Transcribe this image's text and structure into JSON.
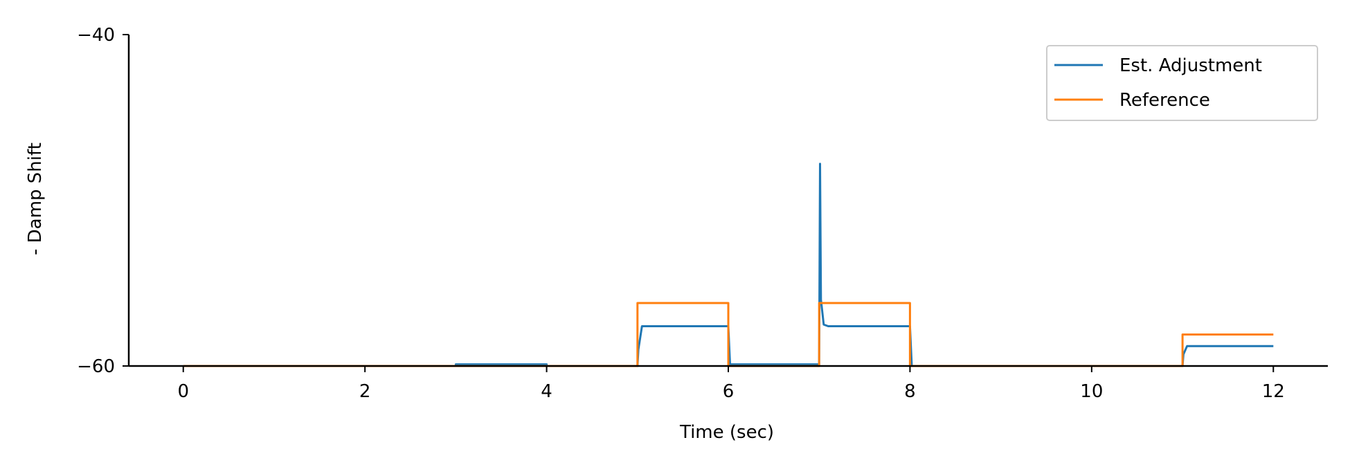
{
  "chart_data": {
    "type": "line",
    "title": "",
    "xlabel": "Time (sec)",
    "ylabel": "- Damp Shift",
    "xlim": [
      -0.6,
      12.6
    ],
    "ylim": [
      -60,
      -40
    ],
    "xticks": [
      0,
      2,
      4,
      6,
      8,
      10,
      12
    ],
    "xtick_labels": [
      "0",
      "2",
      "4",
      "6",
      "8",
      "10",
      "12"
    ],
    "yticks": [
      -60,
      -40
    ],
    "ytick_labels": [
      "−60",
      "−40"
    ],
    "grid": false,
    "legend_position": "top-right",
    "series": [
      {
        "name": "Est. Adjustment",
        "color": "#1f77b4",
        "x": [
          0,
          3.0,
          3.0,
          4.0,
          4.0,
          5.0,
          5.01,
          5.05,
          6.0,
          6.02,
          6.02,
          7.0,
          7.01,
          7.02,
          7.05,
          7.1,
          8.0,
          8.02,
          11.0,
          11.01,
          11.05,
          12.0
        ],
        "y": [
          -60,
          -60,
          -59.9,
          -59.9,
          -60,
          -60,
          -59.0,
          -57.6,
          -57.6,
          -60,
          -59.9,
          -59.9,
          -47.8,
          -56.0,
          -57.5,
          -57.6,
          -57.6,
          -60,
          -60,
          -59.3,
          -58.8,
          -58.8
        ]
      },
      {
        "name": "Reference",
        "color": "#ff7f0e",
        "x": [
          0,
          5.0,
          5.0,
          6.0,
          6.0,
          7.0,
          7.0,
          8.0,
          8.0,
          11.0,
          11.0,
          12.0
        ],
        "y": [
          -60,
          -60,
          -56.2,
          -56.2,
          -60,
          -60,
          -56.2,
          -56.2,
          -60,
          -60,
          -58.1,
          -58.1
        ]
      }
    ]
  }
}
